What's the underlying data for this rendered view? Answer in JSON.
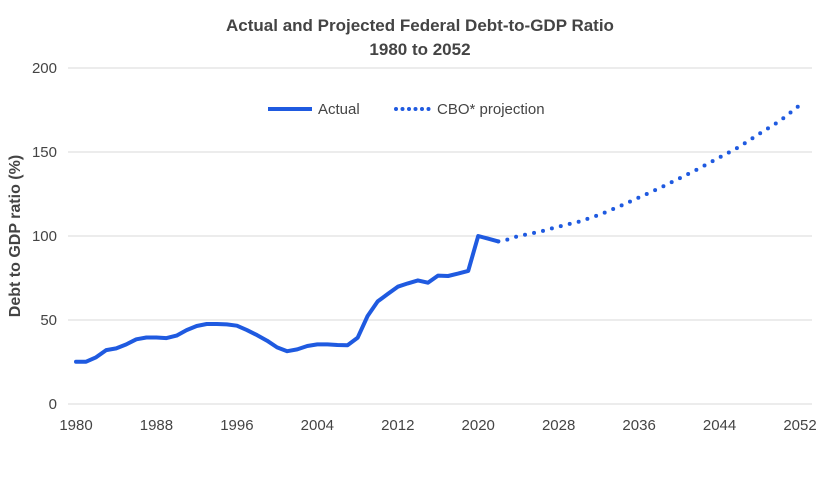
{
  "chart_data": {
    "type": "line",
    "title": "Actual and Projected Federal Debt-to-GDP Ratio",
    "subtitle": "1980 to 2052",
    "xlabel": "",
    "ylabel": "Debt to GDP ratio (%)",
    "xlim": [
      1980,
      2052
    ],
    "ylim": [
      0,
      200
    ],
    "x_ticks": [
      "1980",
      "1988",
      "1996",
      "2004",
      "2012",
      "2020",
      "2028",
      "2036",
      "2044",
      "2052"
    ],
    "y_ticks": [
      "0",
      "50",
      "100",
      "150",
      "200"
    ],
    "grid": true,
    "legend_position": "top-center",
    "series": [
      {
        "name": "Actual",
        "style": "solid",
        "color": "#1f5ae0",
        "x": [
          1980,
          1981,
          1982,
          1983,
          1984,
          1985,
          1986,
          1987,
          1988,
          1989,
          1990,
          1991,
          1992,
          1993,
          1994,
          1995,
          1996,
          1997,
          1998,
          1999,
          2000,
          2001,
          2002,
          2003,
          2004,
          2005,
          2006,
          2007,
          2008,
          2009,
          2010,
          2011,
          2012,
          2013,
          2014,
          2015,
          2016,
          2017,
          2018,
          2019,
          2020,
          2021,
          2022
        ],
        "y": [
          25.2,
          25.2,
          27.8,
          32.1,
          33.1,
          35.5,
          38.5,
          39.6,
          39.6,
          39.2,
          40.7,
          44.0,
          46.4,
          47.6,
          47.6,
          47.4,
          46.6,
          44.0,
          41.0,
          37.7,
          33.7,
          31.4,
          32.5,
          34.5,
          35.5,
          35.5,
          35.1,
          35.0,
          39.4,
          52.4,
          61.1,
          65.5,
          69.8,
          71.8,
          73.6,
          72.2,
          76.4,
          76.2,
          77.6,
          79.2,
          100.0,
          98.4,
          96.8
        ]
      },
      {
        "name": "CBO* projection",
        "style": "dotted",
        "color": "#1f5ae0",
        "x": [
          2022,
          2023,
          2024,
          2026,
          2028,
          2030,
          2032,
          2034,
          2036,
          2038,
          2040,
          2042,
          2044,
          2046,
          2048,
          2050,
          2052
        ],
        "y": [
          96.8,
          98,
          100,
          102.4,
          105.6,
          108.5,
          112.5,
          117.5,
          123,
          128.4,
          134.3,
          140.3,
          146.8,
          153.2,
          161,
          168.5,
          178
        ]
      }
    ]
  }
}
